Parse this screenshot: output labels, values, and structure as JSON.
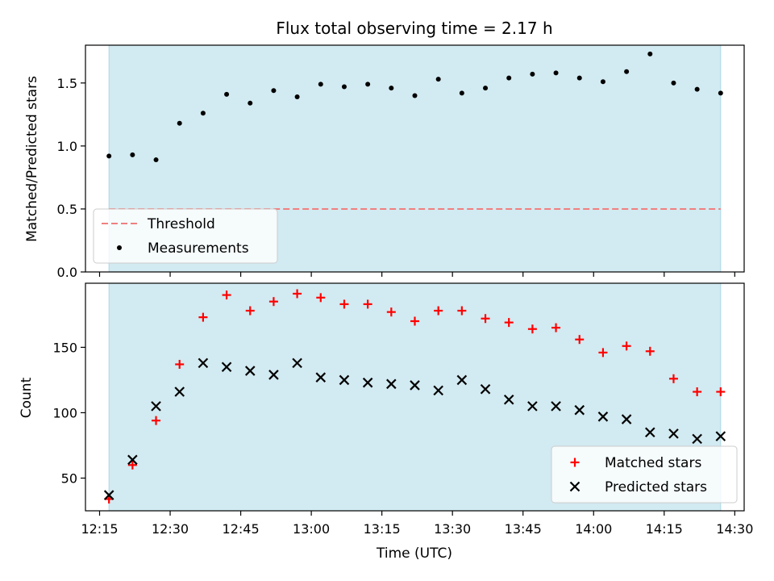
{
  "title": "Flux total observing time = 2.17 h",
  "chart_data": [
    {
      "type": "scatter",
      "panel": "top",
      "ylabel": "Matched/Predicted stars",
      "ylim": [
        0,
        1.8
      ],
      "yticks": [
        0.0,
        0.5,
        1.0,
        1.5
      ],
      "ytick_labels": [
        "0.0",
        "0.5",
        "1.0",
        "1.5"
      ],
      "xlim_minutes": [
        732,
        872
      ],
      "shade_range_minutes": [
        737,
        867
      ],
      "shade_color": "#add8e6",
      "legend": "lower-left",
      "threshold": {
        "name": "Threshold",
        "value": 0.5,
        "color": "#f08080"
      },
      "series": [
        {
          "name": "Measurements",
          "color": "#000000",
          "marker": "dot",
          "x_minutes": [
            737,
            742,
            747,
            752,
            757,
            762,
            767,
            772,
            777,
            782,
            787,
            792,
            797,
            802,
            807,
            812,
            817,
            822,
            827,
            832,
            837,
            842,
            847,
            852,
            857,
            862,
            867
          ],
          "values": [
            0.92,
            0.93,
            0.89,
            1.18,
            1.26,
            1.41,
            1.34,
            1.44,
            1.39,
            1.49,
            1.47,
            1.49,
            1.46,
            1.4,
            1.53,
            1.42,
            1.46,
            1.54,
            1.57,
            1.58,
            1.54,
            1.51,
            1.59,
            1.73,
            1.5,
            1.45,
            1.42
          ]
        }
      ]
    },
    {
      "type": "scatter",
      "panel": "bottom",
      "xlabel": "Time (UTC)",
      "ylabel": "Count",
      "ylim": [
        25,
        199
      ],
      "yticks": [
        50,
        100,
        150
      ],
      "ytick_labels": [
        "50",
        "100",
        "150"
      ],
      "xlim_minutes": [
        732,
        872
      ],
      "xticks_minutes": [
        735,
        750,
        765,
        780,
        795,
        810,
        825,
        840,
        855,
        870
      ],
      "xtick_labels": [
        "12:15",
        "12:30",
        "12:45",
        "13:00",
        "13:15",
        "13:30",
        "13:45",
        "14:00",
        "14:15",
        "14:30"
      ],
      "shade_range_minutes": [
        737,
        867
      ],
      "shade_color": "#add8e6",
      "legend": "lower-right",
      "series": [
        {
          "name": "Matched stars",
          "color": "#ff0000",
          "marker": "plus",
          "x_minutes": [
            737,
            742,
            747,
            752,
            757,
            762,
            767,
            772,
            777,
            782,
            787,
            792,
            797,
            802,
            807,
            812,
            817,
            822,
            827,
            832,
            837,
            842,
            847,
            852,
            857,
            862,
            867
          ],
          "values": [
            34,
            60,
            94,
            137,
            173,
            190,
            178,
            185,
            191,
            188,
            183,
            183,
            177,
            170,
            178,
            178,
            172,
            169,
            164,
            165,
            156,
            146,
            151,
            147,
            126,
            116,
            116
          ]
        },
        {
          "name": "Predicted stars",
          "color": "#000000",
          "marker": "x",
          "x_minutes": [
            737,
            742,
            747,
            752,
            757,
            762,
            767,
            772,
            777,
            782,
            787,
            792,
            797,
            802,
            807,
            812,
            817,
            822,
            827,
            832,
            837,
            842,
            847,
            852,
            857,
            862,
            867
          ],
          "values": [
            37,
            64,
            105,
            116,
            138,
            135,
            132,
            129,
            138,
            127,
            125,
            123,
            122,
            121,
            117,
            125,
            118,
            110,
            105,
            105,
            102,
            97,
            95,
            85,
            84,
            80,
            82
          ]
        }
      ]
    }
  ]
}
